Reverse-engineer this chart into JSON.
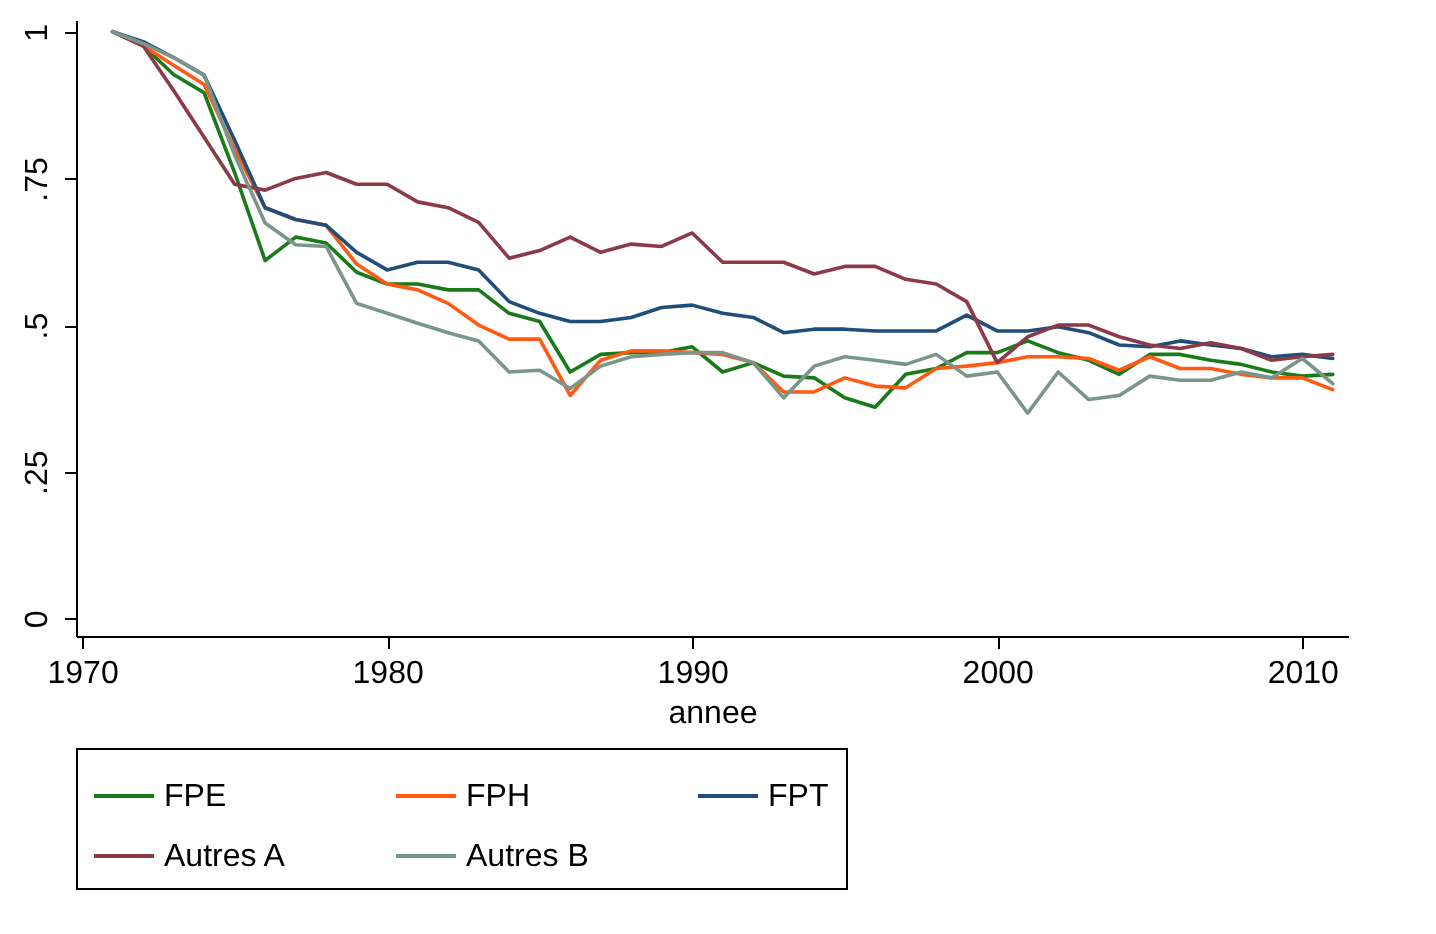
{
  "chart_data": {
    "type": "line",
    "xlabel": "annee",
    "x": [
      1971,
      1972,
      1973,
      1974,
      1975,
      1976,
      1977,
      1978,
      1979,
      1980,
      1981,
      1982,
      1983,
      1984,
      1985,
      1986,
      1987,
      1988,
      1989,
      1990,
      1991,
      1992,
      1993,
      1994,
      1995,
      1996,
      1997,
      1998,
      1999,
      2000,
      2001,
      2002,
      2003,
      2004,
      2005,
      2006,
      2007,
      2008,
      2009,
      2010,
      2011
    ],
    "series": [
      {
        "name": "FPE",
        "color": "#187a18",
        "values": [
          1,
          0.976,
          0.927,
          0.896,
          0.76,
          0.61,
          0.65,
          0.64,
          0.59,
          0.57,
          0.57,
          0.56,
          0.56,
          0.52,
          0.506,
          0.42,
          0.45,
          0.453,
          0.453,
          0.463,
          0.42,
          0.436,
          0.413,
          0.41,
          0.376,
          0.36,
          0.416,
          0.426,
          0.453,
          0.453,
          0.473,
          0.453,
          0.44,
          0.416,
          0.45,
          0.45,
          0.44,
          0.433,
          0.42,
          0.413,
          0.416
        ]
      },
      {
        "name": "FPH",
        "color": "#ff5a14",
        "values": [
          1,
          0.976,
          0.943,
          0.91,
          0.8,
          0.7,
          0.68,
          0.67,
          0.604,
          0.57,
          0.56,
          0.537,
          0.5,
          0.476,
          0.476,
          0.38,
          0.44,
          0.456,
          0.456,
          0.453,
          0.45,
          0.436,
          0.386,
          0.386,
          0.41,
          0.396,
          0.393,
          0.426,
          0.43,
          0.436,
          0.446,
          0.446,
          0.443,
          0.423,
          0.446,
          0.426,
          0.426,
          0.416,
          0.41,
          0.41,
          0.39
        ]
      },
      {
        "name": "FPT",
        "color": "#1f4e7a",
        "values": [
          1,
          0.983,
          0.956,
          0.926,
          0.815,
          0.7,
          0.68,
          0.67,
          0.624,
          0.594,
          0.607,
          0.607,
          0.594,
          0.54,
          0.52,
          0.506,
          0.506,
          0.513,
          0.53,
          0.534,
          0.52,
          0.513,
          0.487,
          0.493,
          0.493,
          0.49,
          0.49,
          0.49,
          0.517,
          0.49,
          0.49,
          0.497,
          0.487,
          0.466,
          0.463,
          0.473,
          0.466,
          0.46,
          0.446,
          0.45,
          0.443
        ]
      },
      {
        "name": "Autres A",
        "color": "#8c3a48",
        "values": [
          1,
          0.976,
          0.9,
          0.82,
          0.74,
          0.73,
          0.75,
          0.76,
          0.74,
          0.74,
          0.71,
          0.7,
          0.675,
          0.614,
          0.627,
          0.65,
          0.624,
          0.638,
          0.634,
          0.657,
          0.607,
          0.607,
          0.607,
          0.587,
          0.6,
          0.6,
          0.578,
          0.57,
          0.54,
          0.436,
          0.48,
          0.5,
          0.5,
          0.48,
          0.466,
          0.46,
          0.47,
          0.46,
          0.44,
          0.446,
          0.45
        ]
      },
      {
        "name": "Autres B",
        "color": "#7a968a",
        "values": [
          1,
          0.98,
          0.956,
          0.926,
          0.79,
          0.674,
          0.637,
          0.634,
          0.537,
          0.52,
          0.503,
          0.487,
          0.473,
          0.42,
          0.423,
          0.392,
          0.43,
          0.446,
          0.45,
          0.453,
          0.453,
          0.436,
          0.376,
          0.43,
          0.446,
          0.44,
          0.433,
          0.45,
          0.413,
          0.42,
          0.35,
          0.42,
          0.373,
          0.38,
          0.413,
          0.406,
          0.406,
          0.42,
          0.41,
          0.443,
          0.4
        ]
      }
    ],
    "xlim": [
      1969.8,
      2011.5
    ],
    "xticks": [
      1970,
      1980,
      1990,
      2000,
      2010
    ],
    "ylim": [
      -0.03,
      1.02
    ],
    "yticks": [
      0,
      {
        "value": 0.25,
        "label": ".25"
      },
      {
        "value": 0.5,
        "label": ".5"
      },
      {
        "value": 0.75,
        "label": ".75"
      },
      1
    ],
    "grid": false,
    "legend": "bottom",
    "line_style": "solid"
  }
}
